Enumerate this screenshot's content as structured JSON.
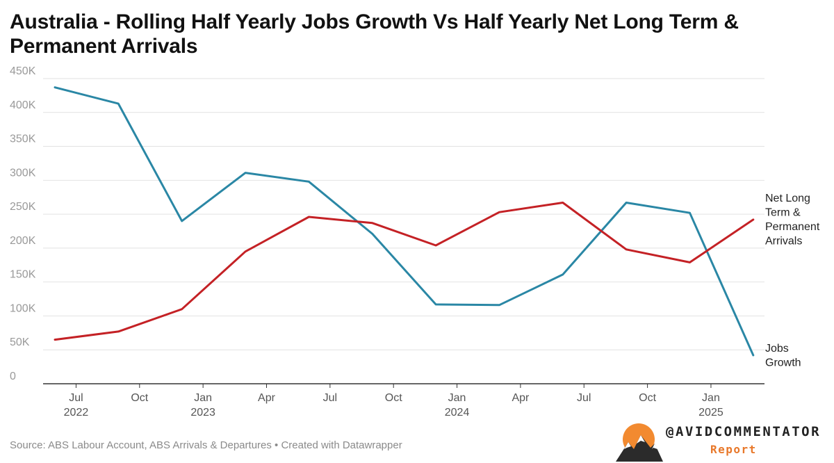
{
  "title": "Australia - Rolling Half Yearly Jobs Growth Vs Half Yearly Net Long Term & Permanent Arrivals",
  "source": "Source: ABS Labour Account, ABS Arrivals & Departures • Created with Datawrapper",
  "logo": {
    "handle": "@AVIDCOMMENTATOR",
    "subtitle": "Report"
  },
  "colors": {
    "jobs": "#2a87a5",
    "arrivals": "#c42125",
    "grid": "#e2e2e2",
    "axis": "#333333",
    "tick": "#999999"
  },
  "chart_data": {
    "type": "line",
    "title": "Australia - Rolling Half Yearly Jobs Growth Vs Half Yearly Net Long Term & Permanent Arrivals",
    "xlabel": "",
    "ylabel": "",
    "ylim": [
      0,
      450000
    ],
    "y_ticks": [
      {
        "value": 0,
        "label": "0"
      },
      {
        "value": 50000,
        "label": "50K"
      },
      {
        "value": 100000,
        "label": "100K"
      },
      {
        "value": 150000,
        "label": "150K"
      },
      {
        "value": 200000,
        "label": "200K"
      },
      {
        "value": 250000,
        "label": "250K"
      },
      {
        "value": 300000,
        "label": "300K"
      },
      {
        "value": 350000,
        "label": "350K"
      },
      {
        "value": 400000,
        "label": "400K"
      },
      {
        "value": 450000,
        "label": "450K"
      }
    ],
    "x_ticks": [
      {
        "month": 1,
        "label": "Jul",
        "sublabel": "2022"
      },
      {
        "month": 4,
        "label": "Oct",
        "sublabel": ""
      },
      {
        "month": 7,
        "label": "Jan",
        "sublabel": "2023"
      },
      {
        "month": 10,
        "label": "Apr",
        "sublabel": ""
      },
      {
        "month": 13,
        "label": "Jul",
        "sublabel": ""
      },
      {
        "month": 16,
        "label": "Oct",
        "sublabel": ""
      },
      {
        "month": 19,
        "label": "Jan",
        "sublabel": "2024"
      },
      {
        "month": 22,
        "label": "Apr",
        "sublabel": ""
      },
      {
        "month": 25,
        "label": "Jul",
        "sublabel": ""
      },
      {
        "month": 28,
        "label": "Oct",
        "sublabel": ""
      },
      {
        "month": 31,
        "label": "Jan",
        "sublabel": "2025"
      }
    ],
    "x_months": [
      0,
      3,
      6,
      9,
      12,
      15,
      18,
      21,
      24,
      27,
      30,
      33
    ],
    "x_period_labels": [
      "Jun 2022",
      "Sep 2022",
      "Dec 2022",
      "Mar 2023",
      "Jun 2023",
      "Sep 2023",
      "Dec 2023",
      "Mar 2024",
      "Jun 2024",
      "Sep 2024",
      "Dec 2024",
      "Mar 2025"
    ],
    "series": [
      {
        "name": "Jobs Growth",
        "label_lines": [
          "Jobs",
          "Growth"
        ],
        "color": "#2a87a5",
        "values": [
          437000,
          413000,
          240000,
          311000,
          298000,
          221000,
          117000,
          116000,
          161000,
          267000,
          252000,
          42000
        ]
      },
      {
        "name": "Net Long Term & Permanent Arrivals",
        "label_lines": [
          "Net Long",
          "Term &",
          "Permanent",
          "Arrivals"
        ],
        "color": "#c42125",
        "values": [
          65000,
          77000,
          110000,
          195000,
          246000,
          237000,
          204000,
          253000,
          267000,
          198000,
          179000,
          242000
        ]
      }
    ]
  }
}
